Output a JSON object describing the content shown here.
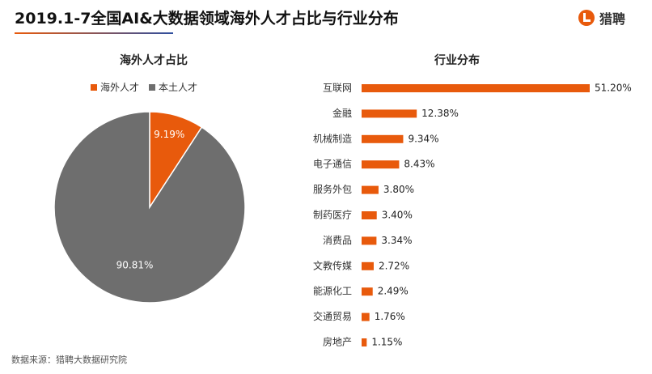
{
  "header": {
    "title": "2019.1-7全国AI&大数据领域海外人才占比与行业分布",
    "logo_text": "猎聘",
    "accent_color": "#e85a0c"
  },
  "chart_data": [
    {
      "type": "pie",
      "title": "海外人才占比",
      "legend_position": "top",
      "slices": [
        {
          "label": "海外人才",
          "value": 9.19,
          "display": "9.19%",
          "color": "#e85a0c"
        },
        {
          "label": "本土人才",
          "value": 90.81,
          "display": "90.81%",
          "color": "#6e6e6e"
        }
      ]
    },
    {
      "type": "bar",
      "orientation": "horizontal",
      "title": "行业分布",
      "color": "#e85a0c",
      "xlim": [
        0,
        51.2
      ],
      "categories": [
        "互联网",
        "金融",
        "机械制造",
        "电子通信",
        "服务外包",
        "制药医疗",
        "消费品",
        "文教传媒",
        "能源化工",
        "交通贸易",
        "房地产"
      ],
      "values": [
        51.2,
        12.38,
        9.34,
        8.43,
        3.8,
        3.4,
        3.34,
        2.72,
        2.49,
        1.76,
        1.15
      ],
      "labels": [
        "51.20%",
        "12.38%",
        "9.34%",
        "8.43%",
        "3.80%",
        "3.40%",
        "3.34%",
        "2.72%",
        "2.49%",
        "1.76%",
        "1.15%"
      ]
    }
  ],
  "footer": {
    "source": "数据来源：猎聘大数据研究院"
  }
}
